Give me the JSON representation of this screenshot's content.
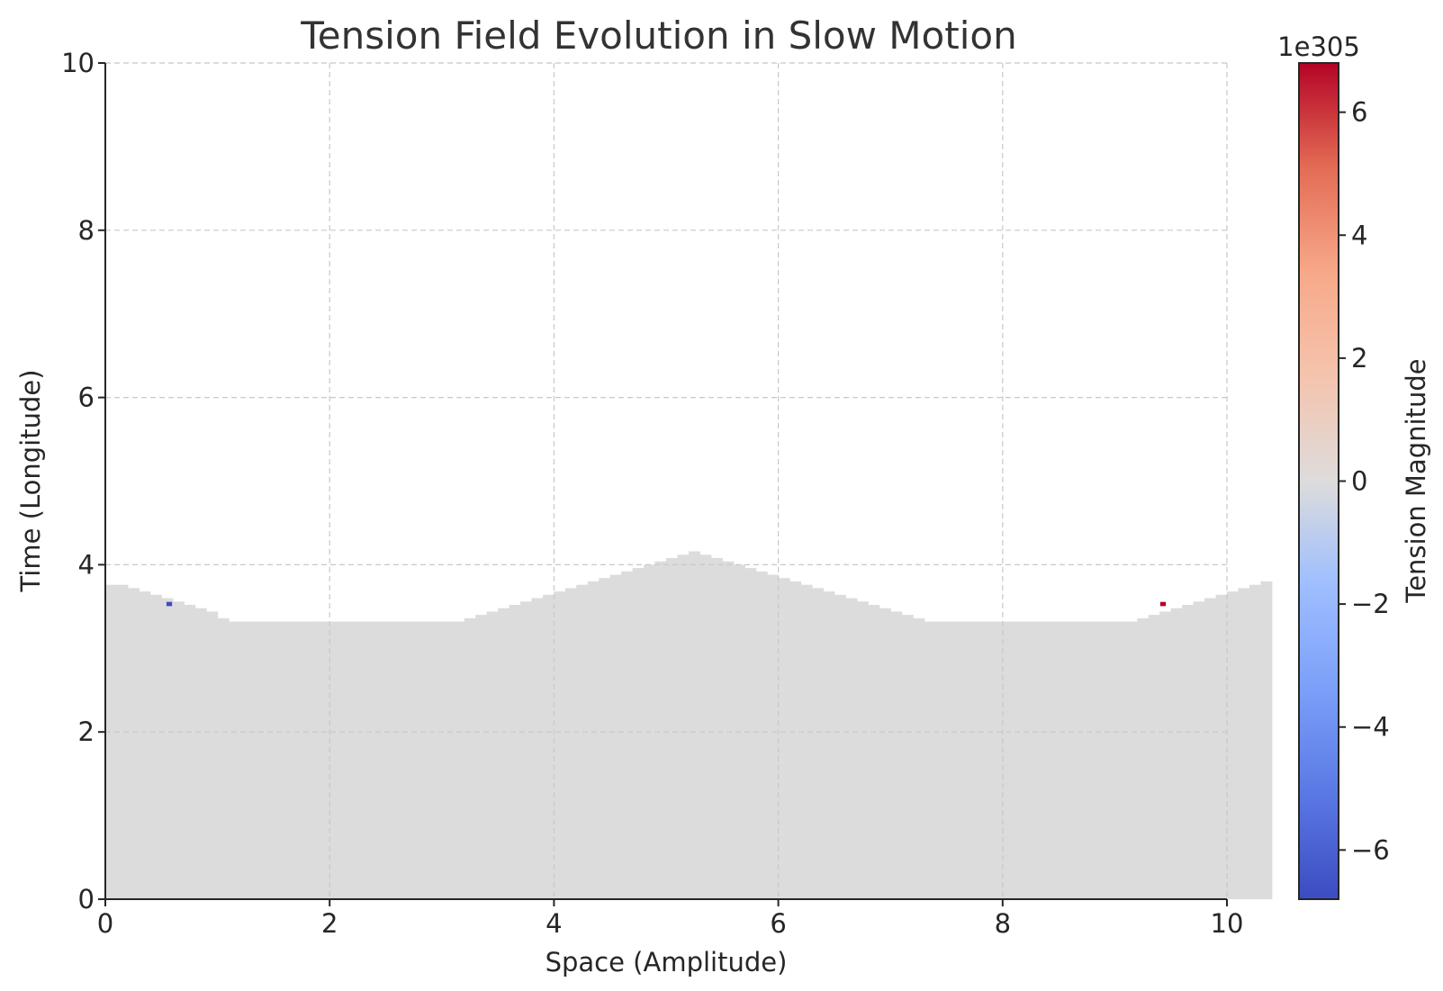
{
  "chart_data": {
    "type": "heatmap",
    "title": "Tension Field Evolution in Slow Motion",
    "xlabel": "Space (Amplitude)",
    "ylabel": "Time (Longitude)",
    "xlim": [
      0,
      10
    ],
    "ylim": [
      0,
      10
    ],
    "x_ticks": [
      "0",
      "2",
      "4",
      "6",
      "8",
      "10"
    ],
    "y_ticks": [
      "0",
      "2",
      "4",
      "6",
      "8",
      "10"
    ],
    "grid": true,
    "field": {
      "cell_width": 0.1,
      "fill_color": "#dcdcdc",
      "value": 0,
      "top_boundary": [
        3.76,
        3.76,
        3.72,
        3.68,
        3.64,
        3.6,
        3.56,
        3.52,
        3.48,
        3.44,
        3.36,
        3.32,
        3.32,
        3.32,
        3.32,
        3.32,
        3.32,
        3.32,
        3.32,
        3.32,
        3.32,
        3.32,
        3.32,
        3.32,
        3.32,
        3.32,
        3.32,
        3.32,
        3.32,
        3.32,
        3.32,
        3.32,
        3.36,
        3.4,
        3.44,
        3.48,
        3.52,
        3.56,
        3.6,
        3.64,
        3.68,
        3.72,
        3.76,
        3.8,
        3.84,
        3.88,
        3.92,
        3.96,
        4.0,
        4.04,
        4.08,
        4.12,
        4.16,
        4.12,
        4.08,
        4.04,
        4.0,
        3.96,
        3.92,
        3.88,
        3.84,
        3.8,
        3.76,
        3.72,
        3.68,
        3.64,
        3.6,
        3.56,
        3.52,
        3.48,
        3.44,
        3.4,
        3.36,
        3.32,
        3.32,
        3.32,
        3.32,
        3.32,
        3.32,
        3.32,
        3.32,
        3.32,
        3.32,
        3.32,
        3.32,
        3.32,
        3.32,
        3.32,
        3.32,
        3.32,
        3.32,
        3.32,
        3.36,
        3.4,
        3.44,
        3.48,
        3.52,
        3.56,
        3.6,
        3.64,
        3.68,
        3.72,
        3.76,
        3.8
      ],
      "spikes": [
        {
          "x": 0.57,
          "y": 3.53,
          "value": -6.8,
          "color": "#3b4cc0"
        },
        {
          "x": 9.43,
          "y": 3.53,
          "value": 6.8,
          "color": "#b40426"
        }
      ]
    },
    "colorbar": {
      "label": "Tension Magnitude",
      "exponent_label": "1e305",
      "colormap": "coolwarm",
      "vmin": -6.8,
      "vmax": 6.8,
      "ticks": [
        -6,
        -4,
        -2,
        0,
        2,
        4,
        6
      ],
      "tick_labels": [
        "−6",
        "−4",
        "−2",
        "0",
        "2",
        "4",
        "6"
      ]
    }
  }
}
